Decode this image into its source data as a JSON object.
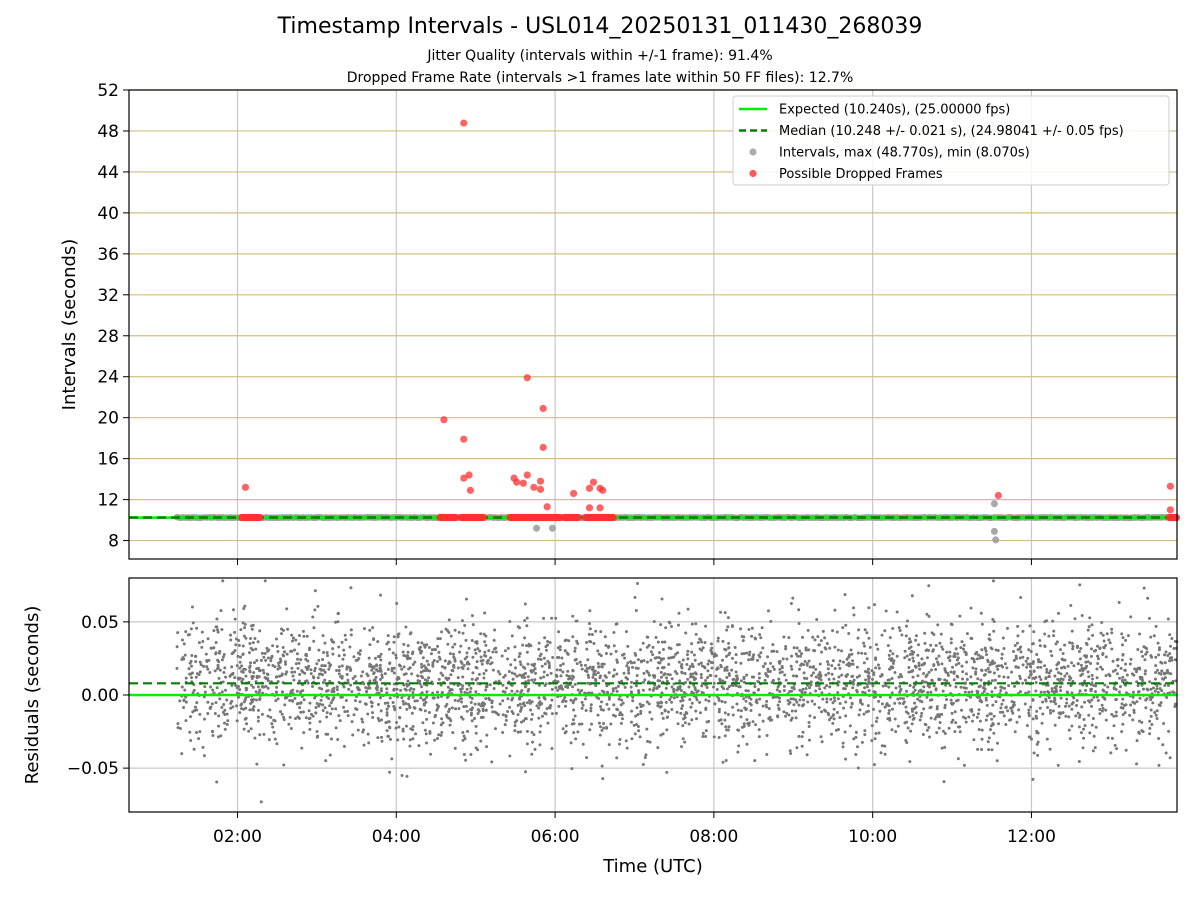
{
  "chart_data": [
    {
      "type": "scatter",
      "title": "Timestamp Intervals - USL014_20250131_011430_268039",
      "subtitles": [
        "Jitter Quality (intervals within +/-1 frame): 91.4%",
        "Dropped Frame Rate (intervals >1 frames late within 50 FF files): 12.7%"
      ],
      "ylabel": "Intervals (seconds)",
      "xlabel": "",
      "xlim": [
        "00:38",
        "13:50"
      ],
      "ylim": [
        6.2,
        52
      ],
      "yticks": [
        8,
        12,
        16,
        20,
        24,
        28,
        32,
        36,
        40,
        44,
        48,
        52
      ],
      "xticks": [
        "02:00",
        "04:00",
        "06:00",
        "08:00",
        "10:00",
        "12:00"
      ],
      "grid": true,
      "legend_position": "top-right",
      "x_start": "01:14",
      "x_end": "13:50",
      "series": [
        {
          "name": "Expected (10.240s), (25.00000 fps)",
          "kind": "hline",
          "value": 10.24,
          "color": "#00ee00",
          "style": "solid"
        },
        {
          "name": "Median (10.248 +/- 0.021 s), (24.98041 +/- 0.05 fps)",
          "kind": "hline",
          "value": 10.248,
          "color": "#007f00",
          "style": "dashed"
        },
        {
          "name": "Intervals, max (48.770s), min (8.070s)",
          "kind": "points",
          "color": "#999999",
          "points": [
            {
              "x": "05:46",
              "y": 9.2
            },
            {
              "x": "05:58",
              "y": 9.2
            },
            {
              "x": "11:32",
              "y": 11.6
            },
            {
              "x": "11:32",
              "y": 8.9
            },
            {
              "x": "11:33",
              "y": 8.07
            }
          ]
        },
        {
          "name": "Possible Dropped Frames",
          "kind": "points",
          "color": "#ff3030",
          "points": [
            {
              "x": "02:06",
              "y": 13.2
            },
            {
              "x": "04:36",
              "y": 19.8
            },
            {
              "x": "04:51",
              "y": 48.77
            },
            {
              "x": "04:51",
              "y": 17.9
            },
            {
              "x": "04:51",
              "y": 14.1
            },
            {
              "x": "04:55",
              "y": 14.4
            },
            {
              "x": "04:56",
              "y": 12.9
            },
            {
              "x": "05:29",
              "y": 14.1
            },
            {
              "x": "05:31",
              "y": 13.7
            },
            {
              "x": "05:36",
              "y": 13.6
            },
            {
              "x": "05:39",
              "y": 14.4
            },
            {
              "x": "05:39",
              "y": 23.9
            },
            {
              "x": "05:44",
              "y": 13.2
            },
            {
              "x": "05:49",
              "y": 13.0
            },
            {
              "x": "05:49",
              "y": 13.8
            },
            {
              "x": "05:51",
              "y": 20.9
            },
            {
              "x": "05:51",
              "y": 17.1
            },
            {
              "x": "05:54",
              "y": 11.3
            },
            {
              "x": "06:14",
              "y": 12.6
            },
            {
              "x": "06:26",
              "y": 13.1
            },
            {
              "x": "06:26",
              "y": 11.2
            },
            {
              "x": "06:29",
              "y": 13.7
            },
            {
              "x": "06:34",
              "y": 13.1
            },
            {
              "x": "06:36",
              "y": 12.9
            },
            {
              "x": "06:34",
              "y": 11.2
            },
            {
              "x": "11:35",
              "y": 12.4
            },
            {
              "x": "13:45",
              "y": 13.3
            },
            {
              "x": "13:45",
              "y": 11.0
            }
          ],
          "clusters": [
            {
              "from": "02:03",
              "to": "02:17",
              "y": 10.25
            },
            {
              "from": "04:33",
              "to": "04:45",
              "y": 10.25
            },
            {
              "from": "04:49",
              "to": "05:06",
              "y": 10.25
            },
            {
              "from": "05:26",
              "to": "06:04",
              "y": 10.25
            },
            {
              "from": "06:07",
              "to": "06:18",
              "y": 10.25
            },
            {
              "from": "06:23",
              "to": "06:44",
              "y": 10.25
            },
            {
              "from": "13:44",
              "to": "13:50",
              "y": 10.25
            }
          ]
        }
      ],
      "legend": [
        {
          "label": "Expected (10.240s), (25.00000 fps)",
          "color": "#00ee00",
          "marker": "line"
        },
        {
          "label": "Median (10.248 +/- 0.021 s), (24.98041 +/- 0.05 fps)",
          "color": "#007f00",
          "marker": "dashed"
        },
        {
          "label": "Intervals, max (48.770s), min (8.070s)",
          "color": "#999999",
          "marker": "dot"
        },
        {
          "label": "Possible Dropped Frames",
          "color": "#ff3030",
          "marker": "dot"
        }
      ]
    },
    {
      "type": "scatter",
      "title": "",
      "ylabel": "Residuals (seconds)",
      "xlabel": "Time (UTC)",
      "xlim": [
        "00:38",
        "13:50"
      ],
      "ylim": [
        -0.08,
        0.08
      ],
      "yticks": [
        -0.05,
        0.0,
        0.05
      ],
      "ytick_labels": [
        "−0.05",
        "0.00",
        "0.05"
      ],
      "xticks": [
        "02:00",
        "04:00",
        "06:00",
        "08:00",
        "10:00",
        "12:00"
      ],
      "grid": true,
      "x_start": "01:14",
      "x_end": "13:50",
      "residuals_summary": {
        "count": 3700,
        "mean": 0.008,
        "std": 0.021,
        "color": "#777777"
      },
      "series": [
        {
          "kind": "hline",
          "value": 0.0,
          "color": "#00ee00",
          "style": "solid"
        },
        {
          "kind": "hline",
          "value": 0.008,
          "color": "#007f00",
          "style": "dashed"
        }
      ]
    }
  ]
}
